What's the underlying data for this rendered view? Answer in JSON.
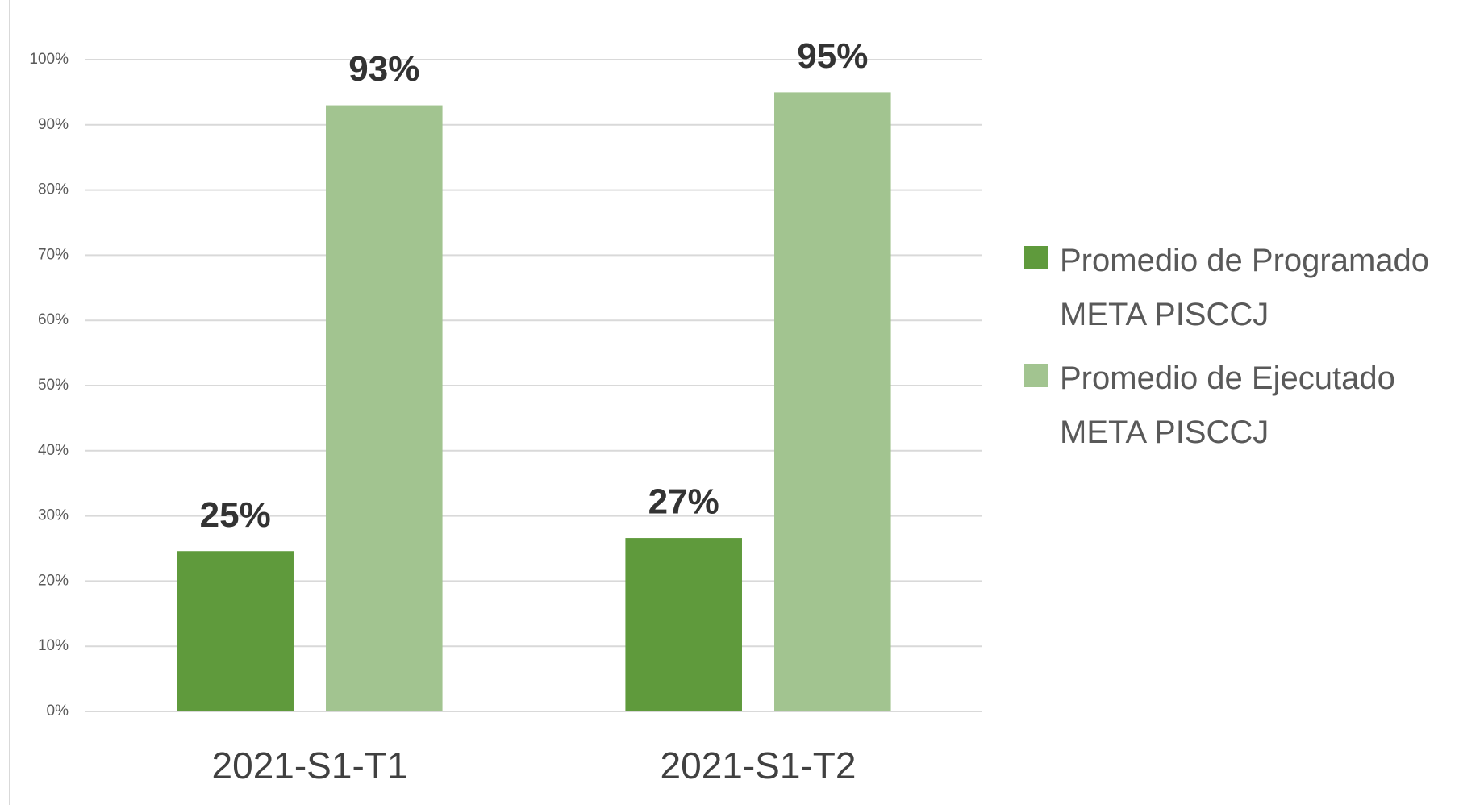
{
  "chart_data": {
    "type": "bar",
    "categories": [
      "2021-S1-T1",
      "2021-S1-T2"
    ],
    "series": [
      {
        "name": "Promedio de Programado META PISCCJ",
        "color": "#5f9a3c",
        "values": [
          24.6,
          26.6
        ],
        "value_labels": [
          "25%",
          "27%"
        ]
      },
      {
        "name": "Promedio de Ejecutado META PISCCJ",
        "color": "#a2c490",
        "values": [
          93,
          95
        ],
        "value_labels": [
          "93%",
          "95%"
        ]
      }
    ],
    "ylim": [
      0,
      100
    ],
    "yticks": [
      {
        "value": 0,
        "label": "0%"
      },
      {
        "value": 10,
        "label": "10%"
      },
      {
        "value": 20,
        "label": "20%"
      },
      {
        "value": 30,
        "label": "30%"
      },
      {
        "value": 40,
        "label": "40%"
      },
      {
        "value": 50,
        "label": "50%"
      },
      {
        "value": 60,
        "label": "60%"
      },
      {
        "value": 70,
        "label": "70%"
      },
      {
        "value": 80,
        "label": "80%"
      },
      {
        "value": 90,
        "label": "90%"
      },
      {
        "value": 100,
        "label": "100%"
      }
    ],
    "grid": true,
    "legend": "right"
  }
}
